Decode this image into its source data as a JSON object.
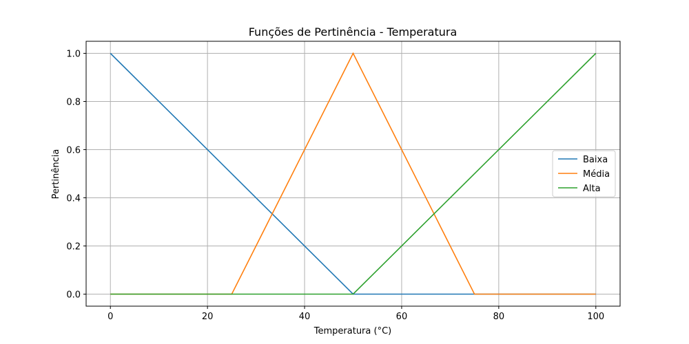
{
  "chart_data": {
    "type": "line",
    "title": "Funções de Pertinência - Temperatura",
    "xlabel": "Temperatura (°C)",
    "ylabel": "Pertinência",
    "xlim": [
      -5,
      105
    ],
    "ylim": [
      -0.05,
      1.05
    ],
    "xticks": [
      "0",
      "20",
      "40",
      "60",
      "80",
      "100"
    ],
    "yticks": [
      "0.0",
      "0.2",
      "0.4",
      "0.6",
      "0.8",
      "1.0"
    ],
    "grid": true,
    "legend_position": "center-right",
    "series": [
      {
        "name": "Baixa",
        "color": "#1f77b4",
        "x": [
          0,
          50,
          100
        ],
        "y": [
          1,
          0,
          0
        ]
      },
      {
        "name": "Média",
        "color": "#ff7f0e",
        "x": [
          0,
          25,
          50,
          75,
          100
        ],
        "y": [
          0,
          0,
          1,
          0,
          0
        ]
      },
      {
        "name": "Alta",
        "color": "#2ca02c",
        "x": [
          0,
          50,
          100
        ],
        "y": [
          0,
          0,
          1
        ]
      }
    ]
  }
}
